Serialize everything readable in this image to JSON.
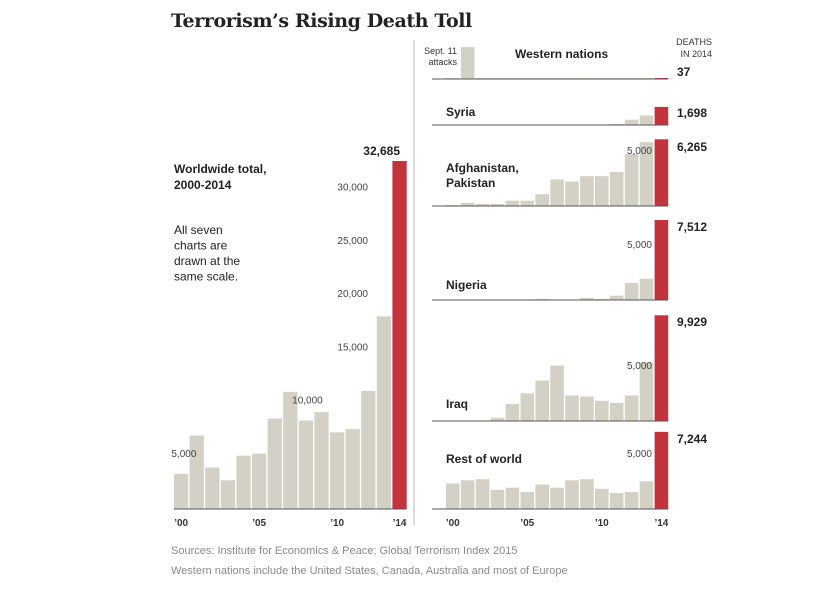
{
  "title": "Terrorism’s Rising Death Toll",
  "sources": "Sources: Institute for Economics & Peace; Global Terrorism Index 2015",
  "note": "Western nations include the United States, Canada, Australia and most of Europe",
  "colors": {
    "bar": "#d3d1c6",
    "highlight": "#c3333d",
    "axis": "#555555",
    "divider": "#bbbbbb"
  },
  "chart_data": [
    {
      "type": "bar",
      "title": "Worldwide total, 2000-2014",
      "annotation": "All seven charts are drawn at the same scale.",
      "x": [
        2000,
        2001,
        2002,
        2003,
        2004,
        2005,
        2006,
        2007,
        2008,
        2009,
        2010,
        2011,
        2012,
        2013,
        2014
      ],
      "values": [
        3300,
        6900,
        3900,
        2700,
        5000,
        5200,
        8500,
        11000,
        8300,
        9100,
        7200,
        7500,
        11100,
        18100,
        32685
      ],
      "x_tick_labels": [
        "’00",
        "’05",
        "’10",
        "’14"
      ],
      "x_tick_values": [
        2000,
        2005,
        2010,
        2014
      ],
      "y_tick_values": [
        5000,
        10000,
        15000,
        20000,
        25000,
        30000
      ],
      "y_tick_labels": [
        "5,000",
        "10,000",
        "15,000",
        "20,000",
        "25,000",
        "30,000"
      ],
      "value_label": "32,685",
      "ylim": [
        0,
        32685
      ]
    },
    {
      "type": "bar",
      "title": "Western nations",
      "annotation": "Sept. 11 attacks",
      "header": "DEATHS IN 2014",
      "x": [
        2000,
        2001,
        2002,
        2003,
        2004,
        2005,
        2006,
        2007,
        2008,
        2009,
        2010,
        2011,
        2012,
        2013,
        2014
      ],
      "values": [
        10,
        3000,
        20,
        10,
        80,
        40,
        20,
        15,
        15,
        20,
        10,
        80,
        30,
        20,
        37
      ],
      "value_label": "37",
      "ylim": [
        0,
        32685
      ]
    },
    {
      "type": "bar",
      "title": "Syria",
      "x": [
        2000,
        2001,
        2002,
        2003,
        2004,
        2005,
        2006,
        2007,
        2008,
        2009,
        2010,
        2011,
        2012,
        2013,
        2014
      ],
      "values": [
        0,
        0,
        0,
        0,
        0,
        0,
        0,
        0,
        0,
        0,
        0,
        10,
        500,
        900,
        1698
      ],
      "value_label": "1,698",
      "ylim": [
        0,
        32685
      ]
    },
    {
      "type": "bar",
      "title": "Afghanistan, Pakistan",
      "x": [
        2000,
        2001,
        2002,
        2003,
        2004,
        2005,
        2006,
        2007,
        2008,
        2009,
        2010,
        2011,
        2012,
        2013,
        2014
      ],
      "values": [
        100,
        300,
        200,
        200,
        500,
        500,
        1100,
        2500,
        2300,
        2800,
        2800,
        3200,
        4900,
        6000,
        6265
      ],
      "value_label": "6,265",
      "y_tick_values": [
        5000
      ],
      "y_tick_labels": [
        "5,000"
      ],
      "ylim": [
        0,
        32685
      ]
    },
    {
      "type": "bar",
      "title": "Nigeria",
      "x": [
        2000,
        2001,
        2002,
        2003,
        2004,
        2005,
        2006,
        2007,
        2008,
        2009,
        2010,
        2011,
        2012,
        2013,
        2014
      ],
      "values": [
        0,
        0,
        0,
        0,
        0,
        0,
        100,
        0,
        0,
        200,
        100,
        400,
        1600,
        2000,
        7512
      ],
      "value_label": "7,512",
      "y_tick_values": [
        5000
      ],
      "y_tick_labels": [
        "5,000"
      ],
      "ylim": [
        0,
        32685
      ]
    },
    {
      "type": "bar",
      "title": "Iraq",
      "x": [
        2000,
        2001,
        2002,
        2003,
        2004,
        2005,
        2006,
        2007,
        2008,
        2009,
        2010,
        2011,
        2012,
        2013,
        2014
      ],
      "values": [
        0,
        0,
        0,
        300,
        1600,
        2600,
        3800,
        5200,
        2400,
        2300,
        1900,
        1700,
        2400,
        5500,
        9929
      ],
      "value_label": "9,929",
      "y_tick_values": [
        5000
      ],
      "y_tick_labels": [
        "5,000"
      ],
      "ylim": [
        0,
        32685
      ]
    },
    {
      "type": "bar",
      "title": "Rest of world",
      "x": [
        2000,
        2001,
        2002,
        2003,
        2004,
        2005,
        2006,
        2007,
        2008,
        2009,
        2010,
        2011,
        2012,
        2013,
        2014
      ],
      "values": [
        2400,
        2700,
        2800,
        1800,
        2000,
        1600,
        2300,
        2000,
        2700,
        2800,
        1900,
        1500,
        1600,
        2600,
        7244
      ],
      "value_label": "7,244",
      "x_tick_labels": [
        "’00",
        "’05",
        "’10",
        "’14"
      ],
      "x_tick_values": [
        2000,
        2005,
        2010,
        2014
      ],
      "y_tick_values": [
        5000
      ],
      "y_tick_labels": [
        "5,000"
      ],
      "ylim": [
        0,
        32685
      ]
    }
  ]
}
